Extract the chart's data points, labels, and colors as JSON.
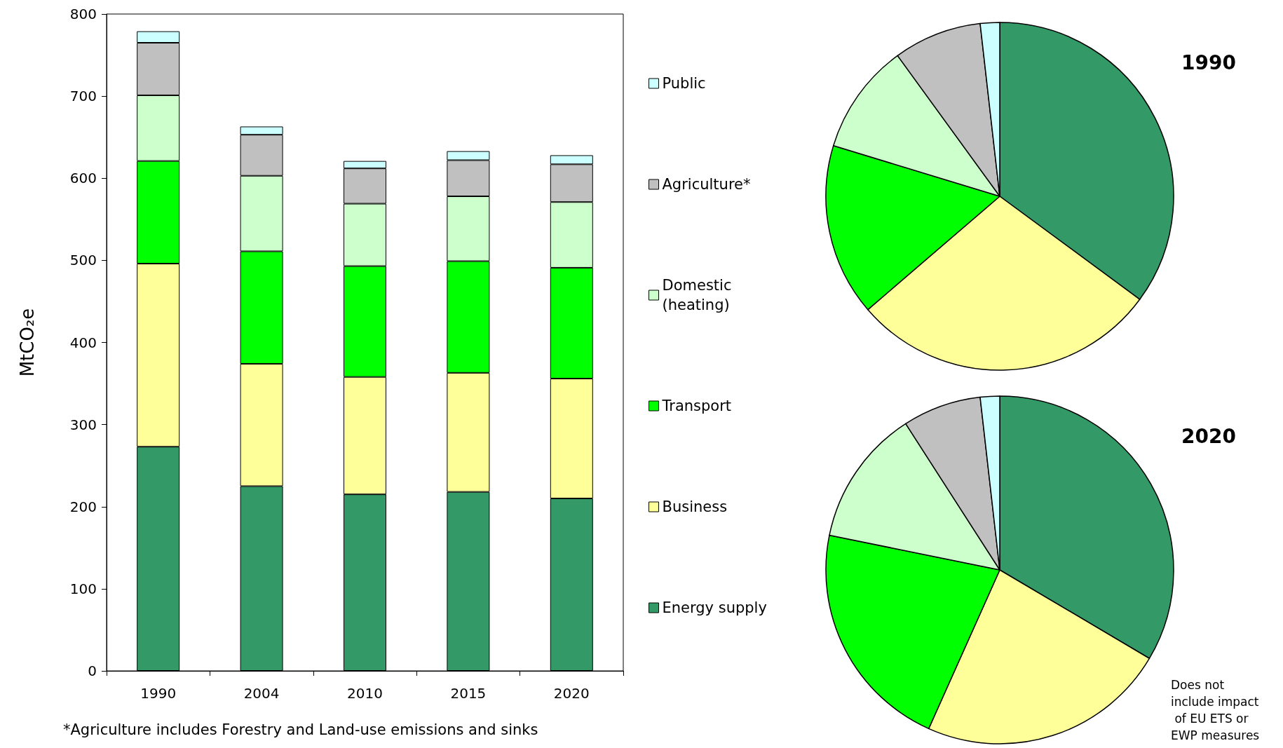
{
  "chart_data": [
    {
      "type": "bar",
      "stacked": true,
      "ylabel": "MtCO₂e",
      "categories": [
        "1990",
        "2004",
        "2010",
        "2015",
        "2020"
      ],
      "ylim": [
        0,
        800
      ],
      "yticks": [
        0,
        100,
        200,
        300,
        400,
        500,
        600,
        700,
        800
      ],
      "grid": false,
      "legend": "right",
      "annotations": [
        "*Agriculture includes Forestry and Land-use emissions and sinks"
      ],
      "series": [
        {
          "name": "Energy supply",
          "color": "#339966",
          "values": [
            273,
            225,
            215,
            218,
            210
          ]
        },
        {
          "name": "Business",
          "color": "#ffff99",
          "values": [
            223,
            149,
            143,
            145,
            146
          ]
        },
        {
          "name": "Transport",
          "color": "#00ff00",
          "values": [
            125,
            137,
            135,
            136,
            135
          ]
        },
        {
          "name": "Domestic (heating)",
          "color": "#ccffcc",
          "values": [
            80,
            92,
            76,
            79,
            80
          ]
        },
        {
          "name": "Agriculture*",
          "color": "#c0c0c0",
          "values": [
            64,
            50,
            43,
            44,
            46
          ]
        },
        {
          "name": "Public",
          "color": "#ccffff",
          "values": [
            14,
            10,
            9,
            11,
            11
          ]
        }
      ]
    },
    {
      "type": "pie",
      "title": "1990",
      "categories": [
        null,
        null,
        null,
        null,
        null,
        null
      ],
      "values": [
        35.1,
        28.6,
        16.0,
        10.3,
        8.2,
        1.8
      ],
      "colors": [
        "#339966",
        "#ffff99",
        "#00ff00",
        "#ccffcc",
        "#c0c0c0",
        "#ccffff"
      ]
    },
    {
      "type": "pie",
      "title": "2020",
      "categories": [
        null,
        null,
        null,
        null,
        null,
        null
      ],
      "values": [
        33.5,
        23.2,
        21.5,
        12.7,
        7.3,
        1.8
      ],
      "colors": [
        "#339966",
        "#ffff99",
        "#00ff00",
        "#ccffcc",
        "#c0c0c0",
        "#ccffff"
      ],
      "annotations": [
        "Does not include impact of EU ETS or EWP measures"
      ]
    }
  ]
}
